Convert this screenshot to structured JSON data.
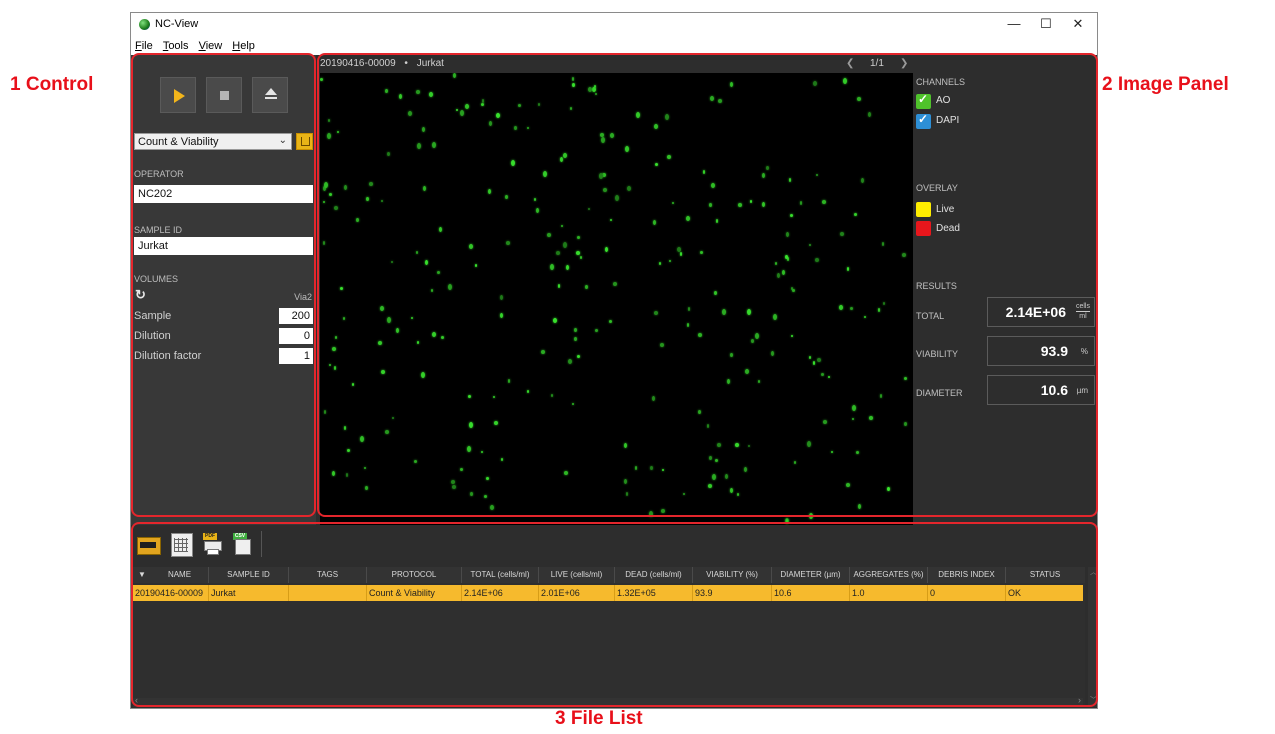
{
  "annotations": {
    "control": "1 Control",
    "image_panel": "2 Image Panel",
    "file_list": "3 File List"
  },
  "window": {
    "title": "NC-View"
  },
  "menu": [
    "File",
    "Tools",
    "View",
    "Help"
  ],
  "control": {
    "protocol": "Count & Viability",
    "operator_label": "OPERATOR",
    "operator_value": "NC202",
    "sample_id_label": "SAMPLE ID",
    "sample_id_value": "Jurkat",
    "volumes_label": "VOLUMES",
    "cassette": "Via2",
    "volumes": [
      {
        "label": "Sample",
        "value": "200"
      },
      {
        "label": "Dilution",
        "value": "0"
      },
      {
        "label": "Dilution factor",
        "value": "1"
      }
    ]
  },
  "image": {
    "name": "20190416-00009",
    "separator": "•",
    "sample": "Jurkat",
    "page": "1/1"
  },
  "side": {
    "channels_label": "CHANNELS",
    "channels": [
      {
        "label": "AO",
        "color": "#4fc22b"
      },
      {
        "label": "DAPI",
        "color": "#2d8fd6"
      }
    ],
    "overlay_label": "OVERLAY",
    "overlay": [
      {
        "label": "Live",
        "color": "#ffee00"
      },
      {
        "label": "Dead",
        "color": "#e8161c"
      }
    ],
    "results_label": "RESULTS",
    "results": [
      {
        "label": "TOTAL",
        "value": "2.14E+06",
        "unit_top": "cells",
        "unit_bottom": "ml"
      },
      {
        "label": "VIABILITY",
        "value": "93.9",
        "unit": "%"
      },
      {
        "label": "DIAMETER",
        "value": "10.6",
        "unit": "µm"
      }
    ]
  },
  "table": {
    "sort_indicator": "▼",
    "columns": [
      "NAME",
      "SAMPLE ID",
      "TAGS",
      "PROTOCOL",
      "TOTAL (cells/ml)",
      "LIVE (cells/ml)",
      "DEAD (cells/ml)",
      "VIABILITY (%)",
      "DIAMETER (µm)",
      "AGGREGATES (%)",
      "DEBRIS INDEX",
      "STATUS"
    ],
    "rows": [
      [
        "20190416-00009",
        "Jurkat",
        "",
        "Count & Viability",
        "2.14E+06",
        "2.01E+06",
        "1.32E+05",
        "93.9",
        "10.6",
        "1.0",
        "0",
        "OK"
      ]
    ]
  },
  "toolbar_icons": [
    "cassette-icon",
    "table-icon",
    "pdf-print-icon",
    "csv-export-icon"
  ]
}
